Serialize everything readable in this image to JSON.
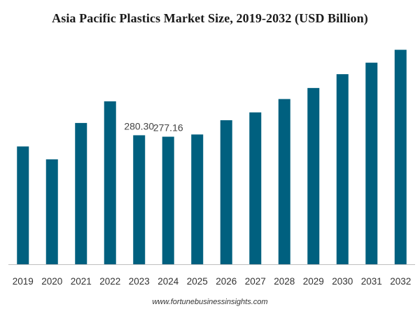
{
  "chart_data": {
    "type": "bar",
    "title": "Asia Pacific Plastics Market Size, 2019-2032 (USD Billion)",
    "xlabel": "",
    "ylabel": "",
    "categories": [
      "2019",
      "2020",
      "2021",
      "2022",
      "2023",
      "2024",
      "2025",
      "2026",
      "2027",
      "2028",
      "2029",
      "2030",
      "2031",
      "2032"
    ],
    "values": [
      256,
      228,
      307,
      354,
      280.3,
      277.16,
      282,
      313,
      330,
      359,
      383,
      413,
      438,
      466
    ],
    "data_labels": [
      null,
      null,
      null,
      null,
      "280.30",
      "277.16",
      null,
      null,
      null,
      null,
      null,
      null,
      null,
      null
    ],
    "ylim": [
      0,
      480
    ],
    "grid": false,
    "legend": "none",
    "bar_color": "#00607f",
    "axis_color": "#bfbfbf"
  },
  "source": "www.fortunebusinessinsights.com"
}
